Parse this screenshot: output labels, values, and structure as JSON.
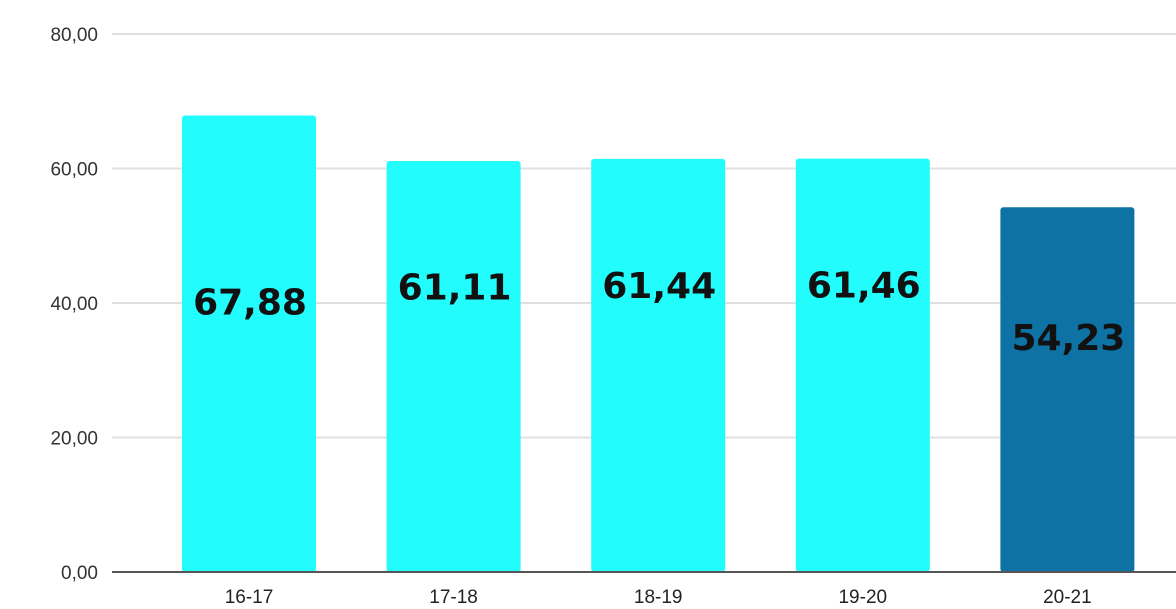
{
  "chart_data": {
    "type": "bar",
    "title": "",
    "xlabel": "",
    "ylabel": "",
    "categories": [
      "16-17",
      "17-18",
      "18-19",
      "19-20",
      "20-21"
    ],
    "values": [
      67.88,
      61.11,
      61.44,
      61.46,
      54.23
    ],
    "value_labels": [
      "67,88",
      "61,11",
      "61,44",
      "61,46",
      "54,23"
    ],
    "ylim": [
      0,
      80
    ],
    "yticks": [
      0,
      20,
      40,
      60,
      80
    ],
    "ytick_labels": [
      "0,00",
      "20,00",
      "40,00",
      "60,00",
      "80,00"
    ],
    "grid": true,
    "legend": "none",
    "colors": [
      "#22fcfc",
      "#22fcfc",
      "#22fcfc",
      "#22fcfc",
      "#0e72a4"
    ]
  },
  "colors": {
    "grid": "#e0e0e0",
    "axis": "#555555",
    "highlight_bar": "#0e72a4",
    "bar": "#22fcfc"
  }
}
